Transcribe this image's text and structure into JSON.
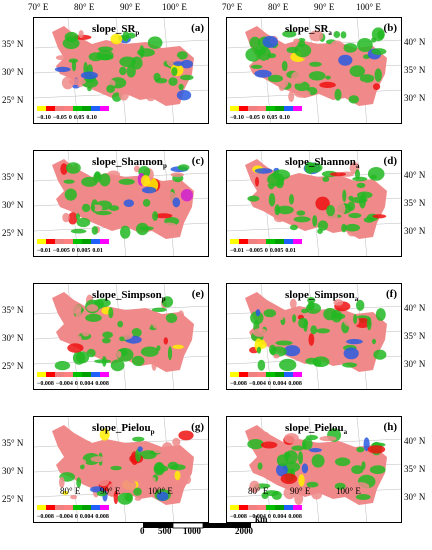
{
  "top_longitude_labels": [
    "70° E",
    "80° E",
    "90° E",
    "100° E"
  ],
  "bottom_longitude_labels": [
    "80° E",
    "90° E",
    "100° E"
  ],
  "left_latitude_labels": [
    "35° N",
    "30° N",
    "25° N"
  ],
  "right_latitude_labels": [
    "40° N",
    "35° N",
    "30° N"
  ],
  "panels": [
    {
      "title": "slope_SR",
      "sub": "p",
      "label": "(a)",
      "ticks": [
        "−0.10",
        "−0.05",
        "0",
        "0.05",
        "0.10"
      ]
    },
    {
      "title": "slope_SR",
      "sub": "a",
      "label": "(b)",
      "ticks": [
        "−0.10",
        "−0.05",
        "0",
        "0.05",
        "0.10"
      ]
    },
    {
      "title": "slope_Shannon",
      "sub": "p",
      "label": "(c)",
      "ticks": [
        "−0.01",
        "−0.005",
        "0",
        "0.005",
        "0.01"
      ]
    },
    {
      "title": "slope_Shannon",
      "sub": "a",
      "label": "(d)",
      "ticks": [
        "−0.01",
        "−0.005",
        "0",
        "0.005",
        "0.01"
      ]
    },
    {
      "title": "slope_Simpson",
      "sub": "p",
      "label": "(e)",
      "ticks": [
        "−0.008",
        "−0.004",
        "0",
        "0.004",
        "0.008"
      ]
    },
    {
      "title": "slope_Simpson",
      "sub": "a",
      "label": "(f)",
      "ticks": [
        "−0.008",
        "−0.004",
        "0",
        "0.004",
        "0.008"
      ]
    },
    {
      "title": "slope_Pielou",
      "sub": "p",
      "label": "(g)",
      "ticks": [
        "−0.008",
        "−0.004",
        "0",
        "0.004",
        "0.008"
      ]
    },
    {
      "title": "slope_Pielou",
      "sub": "a",
      "label": "(h)",
      "ticks": [
        "−0.008",
        "−0.004",
        "0",
        "0.004",
        "0.008"
      ]
    }
  ],
  "legend_colors": [
    "#ffff00",
    "#ff0000",
    "#f08080",
    "#ff8080",
    "#00c000",
    "#00a000",
    "#2060ff",
    "#ff00ff"
  ],
  "map_colors": {
    "pink": "#f08a8a",
    "green": "#22b822",
    "blue": "#2a5ae0",
    "red": "#ee1010",
    "yellow": "#ffee00",
    "magenta": "#d020d0"
  },
  "scalebar": {
    "unit": "km",
    "labels": [
      "0",
      "500",
      "1000",
      "2000"
    ]
  }
}
